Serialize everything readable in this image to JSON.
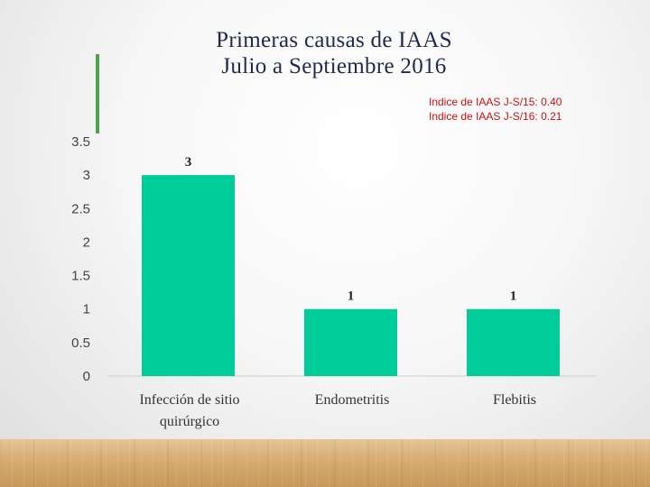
{
  "slide": {
    "title_line1": "Primeras causas de IAAS",
    "title_line2": "Julio a Septiembre 2016",
    "index_note_1": "Indice de IAAS  J-S/15: 0.40",
    "index_note_2": "Indice de IAAS J-S/16: 0.21"
  },
  "colors": {
    "bar": "#00cc99",
    "title": "#1f2a4d",
    "accent": "#4ea24a",
    "note": "#cc1111"
  },
  "chart_data": {
    "type": "bar",
    "title": "",
    "xlabel": "",
    "ylabel": "",
    "categories": [
      [
        "Infección de sitio",
        "quirúrgico"
      ],
      [
        "Endometritis"
      ],
      [
        "Flebitis"
      ]
    ],
    "values": [
      3,
      1,
      1
    ],
    "data_labels": [
      "3",
      "1",
      "1"
    ],
    "ylim": [
      0,
      3.5
    ],
    "yticks": [
      "0",
      "0.5",
      "1",
      "1.5",
      "2",
      "2.5",
      "3",
      "3.5"
    ],
    "grid": false,
    "legend": "none"
  }
}
